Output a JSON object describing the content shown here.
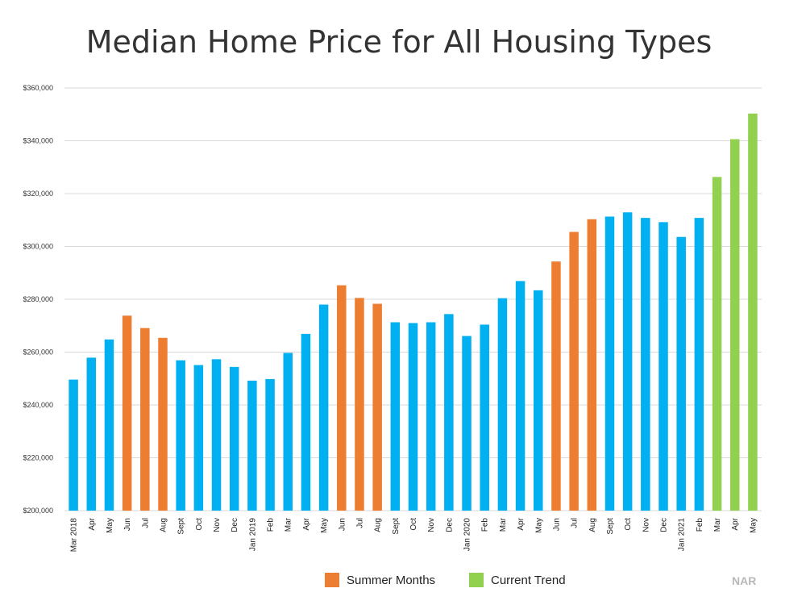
{
  "chart_data": {
    "type": "bar",
    "title": "Median Home Price for All Housing Types",
    "ylim": [
      200000,
      360000
    ],
    "ytick_values": [
      200000,
      220000,
      240000,
      260000,
      280000,
      300000,
      320000,
      340000,
      360000
    ],
    "ytick_labels": [
      "$200,000",
      "$220,000",
      "$240,000",
      "$260,000",
      "$280,000",
      "$300,000",
      "$320,000",
      "$340,000",
      "$360,000"
    ],
    "grid": true,
    "legend_position": "bottom",
    "categories": [
      "Mar 2018",
      "Apr",
      "May",
      "Jun",
      "Jul",
      "Aug",
      "Sept",
      "Oct",
      "Nov",
      "Dec",
      "Jan 2019",
      "Feb",
      "Mar",
      "Apr",
      "May",
      "Jun",
      "Jul",
      "Aug",
      "Sept",
      "Oct",
      "Nov",
      "Dec",
      "Jan 2020",
      "Feb",
      "Mar",
      "Apr",
      "May",
      "Jun",
      "Jul",
      "Aug",
      "Sept",
      "Oct",
      "Nov",
      "Dec",
      "Jan 2021",
      "Feb",
      "Mar",
      "Apr",
      "May"
    ],
    "values": [
      249600,
      257900,
      264800,
      273800,
      269100,
      265400,
      256900,
      255100,
      257300,
      254400,
      249200,
      249800,
      259700,
      266900,
      278000,
      285300,
      280500,
      278300,
      271300,
      271000,
      271300,
      274400,
      266100,
      270400,
      280400,
      286900,
      283400,
      294300,
      305500,
      310300,
      311300,
      312900,
      310800,
      309200,
      303600,
      310800,
      326300,
      340600,
      350300
    ],
    "bar_groups": [
      "regular",
      "regular",
      "regular",
      "summer",
      "summer",
      "summer",
      "regular",
      "regular",
      "regular",
      "regular",
      "regular",
      "regular",
      "regular",
      "regular",
      "regular",
      "summer",
      "summer",
      "summer",
      "regular",
      "regular",
      "regular",
      "regular",
      "regular",
      "regular",
      "regular",
      "regular",
      "regular",
      "summer",
      "summer",
      "summer",
      "regular",
      "regular",
      "regular",
      "regular",
      "regular",
      "regular",
      "trend",
      "trend",
      "trend"
    ],
    "colors": {
      "regular": "#00b0f0",
      "summer": "#ed7d31",
      "trend": "#92d050",
      "grid": "#d9d9d9"
    },
    "legend": [
      {
        "key": "summer",
        "label": "Summer Months"
      },
      {
        "key": "trend",
        "label": "Current Trend"
      }
    ]
  },
  "source": "NAR"
}
